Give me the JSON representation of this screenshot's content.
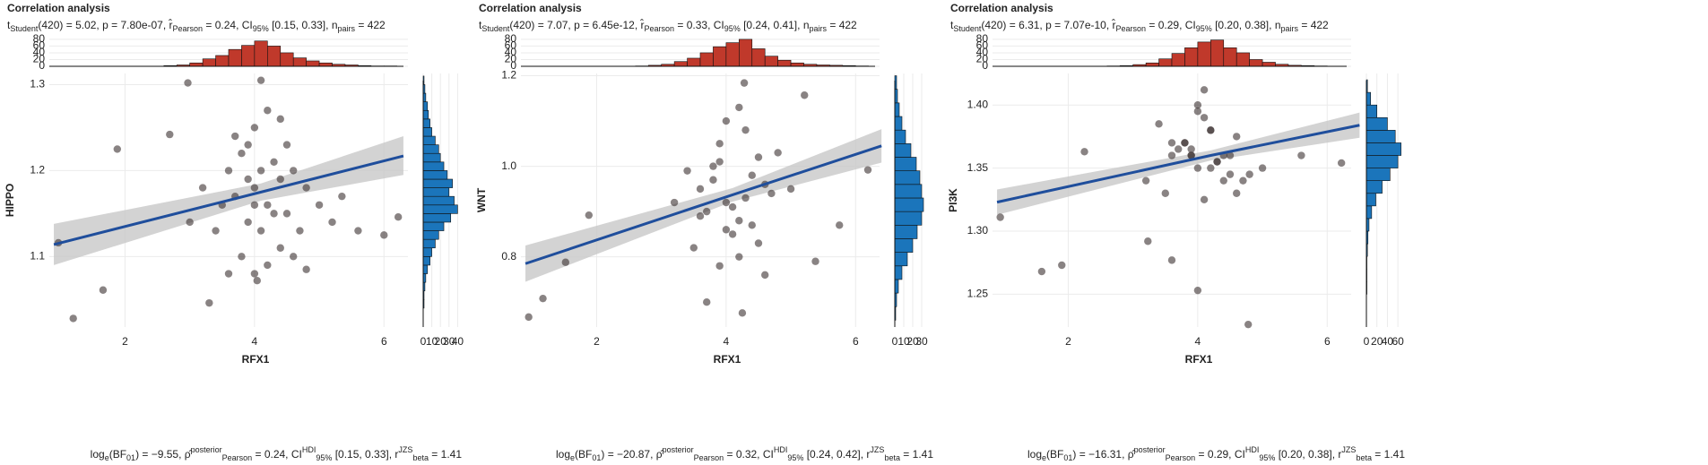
{
  "chart_data": [
    {
      "type": "scatter",
      "title": "Correlation analysis",
      "subtitle": [
        "t",
        {
          "sub": "Student"
        },
        "(420) = 5.02, ",
        "p",
        " = 7.80e-07, ",
        "r̂",
        {
          "sub": "Pearson"
        },
        " = 0.24, CI",
        {
          "sub": "95%"
        },
        " [0.15, 0.33], ",
        "n",
        {
          "sub": "pairs"
        },
        " = 422"
      ],
      "caption": [
        "log",
        {
          "sub": "e"
        },
        "(BF",
        {
          "sub": "01"
        },
        ") = −9.55, ",
        "ρ̂",
        {
          "sup": "posterior"
        },
        {
          "sub": "Pearson"
        },
        " = 0.24, CI",
        {
          "sup": "HDI"
        },
        {
          "sub": "95%"
        },
        " [0.15, 0.33], ",
        "r",
        {
          "sup": "JZS"
        },
        {
          "sub": "beta"
        },
        " = 1.41"
      ],
      "x_label": "RFX1",
      "y_label": "HIPPO",
      "grid": true,
      "xlim": [
        0.83,
        6.37
      ],
      "xticks": [
        2,
        4,
        6
      ],
      "ylim": [
        1.018,
        1.313
      ],
      "yticks": [
        1.1,
        1.2,
        1.3
      ],
      "point_color": "#3a3030",
      "x": [
        0.97,
        1.2,
        1.66,
        1.88,
        2.69,
        2.97,
        3.3,
        4.04,
        4.1,
        6.0,
        6.22,
        5.35,
        5.6,
        4.8,
        3.6,
        3.8,
        4.0,
        4.2,
        4.4,
        3.9,
        4.1,
        4.3,
        3.7,
        4.5,
        4.6,
        3.5,
        4.0,
        4.2,
        3.8,
        4.4,
        4.7,
        3.4,
        4.1,
        3.9,
        4.3,
        4.0,
        4.8,
        3.6,
        4.5,
        5.0,
        3.2,
        4.2,
        3.9,
        4.6,
        5.2,
        3.0,
        4.0,
        4.4,
        3.7
      ],
      "y": [
        1.116,
        1.028,
        1.061,
        1.225,
        1.242,
        1.302,
        1.046,
        1.072,
        1.305,
        1.125,
        1.146,
        1.17,
        1.13,
        1.085,
        1.2,
        1.22,
        1.18,
        1.16,
        1.19,
        1.14,
        1.13,
        1.21,
        1.17,
        1.15,
        1.2,
        1.16,
        1.25,
        1.27,
        1.1,
        1.11,
        1.13,
        1.13,
        1.2,
        1.19,
        1.15,
        1.16,
        1.18,
        1.08,
        1.23,
        1.16,
        1.18,
        1.09,
        1.23,
        1.1,
        1.14,
        1.14,
        1.08,
        1.26,
        1.24
      ],
      "fit": {
        "color": "#1f4e9c",
        "band_color": "#c8c8c8",
        "x": [
          0.9,
          4.1,
          6.3
        ],
        "y": [
          1.114,
          1.175,
          1.217
        ],
        "lower": [
          1.09,
          1.165,
          1.195
        ],
        "upper": [
          1.138,
          1.185,
          1.24
        ]
      },
      "top_histogram": {
        "color": "#c0392b",
        "ylim": [
          0,
          85
        ],
        "yticks": [
          0,
          20,
          40,
          60,
          80
        ],
        "bins": [
          2.6,
          2.8,
          3.0,
          3.2,
          3.4,
          3.6,
          3.8,
          4.0,
          4.2,
          4.4,
          4.6,
          4.8,
          5.0,
          5.2,
          5.4,
          5.6,
          5.8,
          6.0,
          6.2
        ],
        "counts": [
          2,
          4,
          10,
          22,
          32,
          50,
          62,
          75,
          60,
          40,
          25,
          16,
          10,
          6,
          4,
          2,
          1,
          1
        ]
      },
      "right_histogram": {
        "color": "#1b75bb",
        "xlim": [
          0,
          50
        ],
        "xticks": [
          0,
          10,
          20,
          30,
          40
        ],
        "bins": [
          1.04,
          1.05,
          1.06,
          1.07,
          1.08,
          1.09,
          1.1,
          1.11,
          1.12,
          1.13,
          1.14,
          1.15,
          1.16,
          1.17,
          1.18,
          1.19,
          1.2,
          1.21,
          1.22,
          1.23,
          1.24,
          1.25,
          1.26,
          1.27,
          1.28,
          1.29,
          1.3,
          1.31
        ],
        "counts": [
          1,
          1,
          2,
          3,
          5,
          8,
          10,
          14,
          18,
          24,
          32,
          40,
          36,
          30,
          34,
          28,
          24,
          20,
          18,
          14,
          10,
          8,
          6,
          5,
          3,
          2,
          1
        ]
      }
    },
    {
      "type": "scatter",
      "title": "Correlation analysis",
      "subtitle": [
        "t",
        {
          "sub": "Student"
        },
        "(420) = 7.07, ",
        "p",
        " = 6.45e-12, ",
        "r̂",
        {
          "sub": "Pearson"
        },
        " = 0.33, CI",
        {
          "sub": "95%"
        },
        " [0.24, 0.41], ",
        "n",
        {
          "sub": "pairs"
        },
        " = 422"
      ],
      "caption": [
        "log",
        {
          "sub": "e"
        },
        "(BF",
        {
          "sub": "01"
        },
        ") = −20.87, ",
        "ρ̂",
        {
          "sup": "posterior"
        },
        {
          "sub": "Pearson"
        },
        " = 0.32, CI",
        {
          "sup": "HDI"
        },
        {
          "sub": "95%"
        },
        " [0.24, 0.42], ",
        "r",
        {
          "sup": "JZS"
        },
        {
          "sub": "beta"
        },
        " = 1.41"
      ],
      "x_label": "RFX1",
      "y_label": "WNT",
      "grid": true,
      "xlim": [
        0.83,
        6.37
      ],
      "xticks": [
        2,
        4,
        6
      ],
      "ylim": [
        0.645,
        1.205
      ],
      "yticks": [
        0.8,
        {
          "value": 1.0,
          "label": "1.0"
        },
        1.2
      ],
      "point_color": "#3a3030",
      "x": [
        0.95,
        1.17,
        1.52,
        1.88,
        4.28,
        6.19,
        5.38,
        5.75,
        4.25,
        3.7,
        5.21,
        3.6,
        3.8,
        4.0,
        4.2,
        4.4,
        3.9,
        4.1,
        4.3,
        3.7,
        4.5,
        4.6,
        3.5,
        4.0,
        4.2,
        3.8,
        4.4,
        4.7,
        3.4,
        4.1,
        3.9,
        4.3,
        4.0,
        4.8,
        3.6,
        4.5,
        5.0,
        3.2,
        4.2,
        3.9,
        4.6
      ],
      "y": [
        0.667,
        0.708,
        0.788,
        0.892,
        1.184,
        0.992,
        0.79,
        0.87,
        0.676,
        0.7,
        1.157,
        0.95,
        1.0,
        0.92,
        0.88,
        0.98,
        1.05,
        0.85,
        0.93,
        0.9,
        1.02,
        0.96,
        0.82,
        1.1,
        0.8,
        0.97,
        0.87,
        0.94,
        0.99,
        0.91,
        0.78,
        1.08,
        0.86,
        1.03,
        0.89,
        0.83,
        0.95,
        0.92,
        1.13,
        1.01,
        0.76
      ],
      "fit": {
        "color": "#1f4e9c",
        "band_color": "#c8c8c8",
        "x": [
          0.9,
          4.1,
          6.4
        ],
        "y": [
          0.785,
          0.937,
          1.045
        ],
        "lower": [
          0.745,
          0.922,
          1.008
        ],
        "upper": [
          0.825,
          0.952,
          1.082
        ]
      },
      "top_histogram": {
        "color": "#c0392b",
        "ylim": [
          0,
          85
        ],
        "yticks": [
          0,
          20,
          40,
          60,
          80
        ],
        "bins": [
          2.6,
          2.8,
          3.0,
          3.2,
          3.4,
          3.6,
          3.8,
          4.0,
          4.2,
          4.4,
          4.6,
          4.8,
          5.0,
          5.2,
          5.4,
          5.6,
          5.8,
          6.0,
          6.2
        ],
        "counts": [
          1,
          3,
          6,
          14,
          24,
          40,
          58,
          70,
          80,
          52,
          30,
          18,
          10,
          6,
          4,
          3,
          2,
          1
        ]
      },
      "right_histogram": {
        "color": "#1b75bb",
        "xlim": [
          0,
          48
        ],
        "xticks": [
          0,
          10,
          20,
          30
        ],
        "bins": [
          0.66,
          0.69,
          0.72,
          0.75,
          0.78,
          0.81,
          0.84,
          0.87,
          0.9,
          0.93,
          0.96,
          0.99,
          1.02,
          1.05,
          1.08,
          1.11,
          1.14,
          1.17,
          1.2
        ],
        "counts": [
          1,
          2,
          4,
          8,
          14,
          20,
          25,
          30,
          32,
          30,
          28,
          24,
          18,
          12,
          8,
          5,
          3,
          2
        ]
      }
    },
    {
      "type": "scatter",
      "title": "Correlation analysis",
      "subtitle": [
        "t",
        {
          "sub": "Student"
        },
        "(420) = 6.31, ",
        "p",
        " = 7.07e-10, ",
        "r̂",
        {
          "sub": "Pearson"
        },
        " = 0.29, CI",
        {
          "sub": "95%"
        },
        " [0.20, 0.38], ",
        "n",
        {
          "sub": "pairs"
        },
        " = 422"
      ],
      "caption": [
        "log",
        {
          "sub": "e"
        },
        "(BF",
        {
          "sub": "01"
        },
        ") = −16.31, ",
        "ρ̂",
        {
          "sup": "posterior"
        },
        {
          "sub": "Pearson"
        },
        " = 0.29, CI",
        {
          "sup": "HDI"
        },
        {
          "sub": "95%"
        },
        " [0.20, 0.38], ",
        "r",
        {
          "sup": "JZS"
        },
        {
          "sub": "beta"
        },
        " = 1.41"
      ],
      "x_label": "RFX1",
      "y_label": "PI3K",
      "grid": true,
      "xlim": [
        0.83,
        6.37
      ],
      "xticks": [
        2,
        4,
        6
      ],
      "ylim": [
        1.224,
        1.425
      ],
      "yticks": [
        1.25,
        {
          "value": 1.3,
          "label": "1.30"
        },
        1.35,
        {
          "value": 1.4,
          "label": "1.40"
        }
      ],
      "point_color": "#3a3030",
      "x": [
        0.95,
        1.59,
        1.9,
        2.25,
        3.23,
        3.6,
        4.0,
        4.78,
        4.1,
        6.22,
        5.6,
        3.6,
        3.8,
        4.0,
        4.2,
        4.4,
        3.9,
        4.1,
        4.3,
        3.7,
        4.5,
        4.6,
        3.5,
        4.0,
        4.2,
        3.8,
        4.4,
        4.7,
        3.4,
        4.1,
        3.9,
        4.3,
        4.0,
        4.8,
        3.6,
        4.5,
        5.0,
        3.2,
        4.2,
        3.9,
        4.6
      ],
      "y": [
        1.311,
        1.268,
        1.273,
        1.363,
        1.292,
        1.277,
        1.253,
        1.226,
        1.412,
        1.354,
        1.36,
        1.36,
        1.37,
        1.35,
        1.38,
        1.34,
        1.36,
        1.39,
        1.355,
        1.365,
        1.345,
        1.375,
        1.33,
        1.4,
        1.35,
        1.37,
        1.36,
        1.34,
        1.385,
        1.325,
        1.36,
        1.355,
        1.395,
        1.345,
        1.37,
        1.36,
        1.35,
        1.34,
        1.38,
        1.365,
        1.33
      ],
      "fit": {
        "color": "#1f4e9c",
        "band_color": "#c8c8c8",
        "x": [
          0.9,
          4.2,
          6.5
        ],
        "y": [
          1.323,
          1.36,
          1.384
        ],
        "lower": [
          1.313,
          1.356,
          1.374
        ],
        "upper": [
          1.333,
          1.364,
          1.394
        ]
      },
      "top_histogram": {
        "color": "#c0392b",
        "ylim": [
          0,
          85
        ],
        "yticks": [
          0,
          20,
          40,
          60,
          80
        ],
        "bins": [
          2.6,
          2.8,
          3.0,
          3.2,
          3.4,
          3.6,
          3.8,
          4.0,
          4.2,
          4.4,
          4.6,
          4.8,
          5.0,
          5.2,
          5.4,
          5.6,
          5.8,
          6.0,
          6.2
        ],
        "counts": [
          1,
          2,
          5,
          10,
          22,
          38,
          55,
          72,
          78,
          55,
          40,
          20,
          12,
          6,
          3,
          2,
          1,
          0
        ]
      },
      "right_histogram": {
        "color": "#1b75bb",
        "xlim": [
          0,
          82
        ],
        "xticks": [
          0,
          20,
          40,
          60
        ],
        "bins": [
          1.25,
          1.26,
          1.27,
          1.28,
          1.29,
          1.3,
          1.31,
          1.32,
          1.33,
          1.34,
          1.35,
          1.36,
          1.37,
          1.38,
          1.39,
          1.4,
          1.41,
          1.42
        ],
        "counts": [
          1,
          1,
          1,
          2,
          3,
          5,
          10,
          18,
          30,
          45,
          60,
          66,
          55,
          40,
          20,
          8,
          2
        ]
      }
    }
  ]
}
